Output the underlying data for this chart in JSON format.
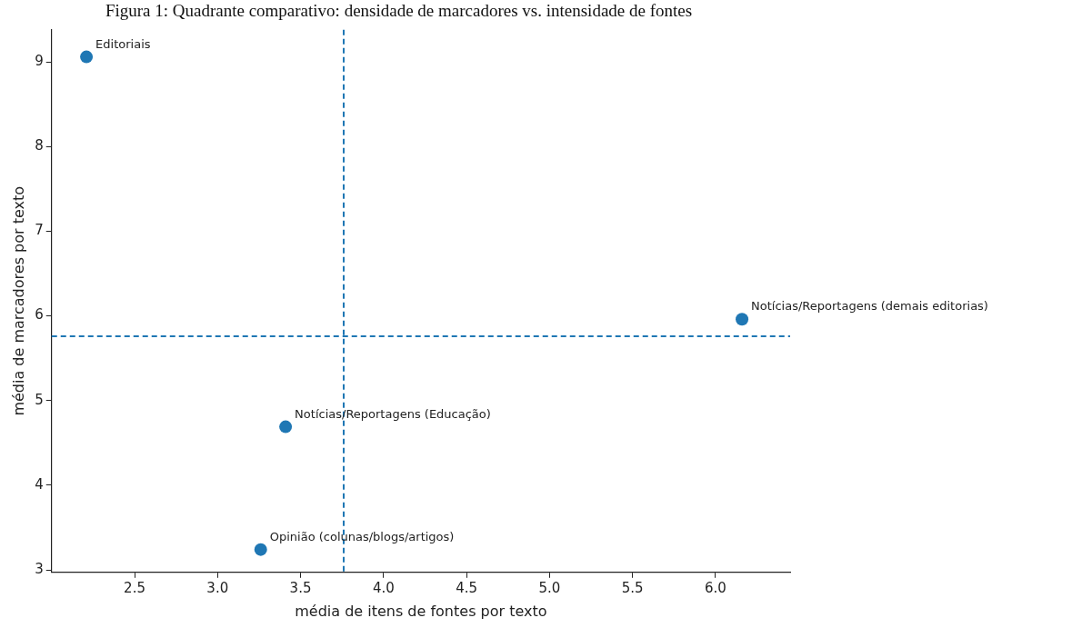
{
  "chart_data": {
    "type": "scatter",
    "title": "Figura 1: Quadrante comparativo: densidade de marcadores vs. intensidade de fontes",
    "xlabel": "média de itens de fontes por texto",
    "ylabel": "média de marcadores por texto",
    "series": [
      {
        "color": "#1f77b4",
        "x": [
          2.21,
          6.16,
          3.41,
          3.26
        ],
        "values": [
          9.06,
          5.96,
          4.69,
          3.24
        ]
      }
    ],
    "marker": "circle",
    "grid": false,
    "legend": false,
    "xlim": [
      2.0,
      6.45
    ],
    "xticks": [
      2.5,
      {
        "value": 3,
        "label": "3.0"
      },
      3.5,
      {
        "value": 4,
        "label": "4.0"
      },
      4.5,
      {
        "value": 5,
        "label": "5.0"
      },
      5.5,
      {
        "value": 6,
        "label": "6.0"
      }
    ],
    "ylim": [
      2.97,
      9.38
    ],
    "yticks": [
      3,
      4,
      5,
      6,
      7,
      8,
      9
    ],
    "ref_lines": [
      {
        "axis": "x",
        "value": 3.76,
        "color": "#1f77b4",
        "line_style": "dashed"
      },
      {
        "axis": "y",
        "value": 5.76,
        "color": "#1f77b4",
        "line_style": "dashed"
      }
    ],
    "annotations": [
      {
        "text": "Editoriais",
        "x": 2.21,
        "y": 9.06
      },
      {
        "text": "Notícias/Reportagens (demais editorias)",
        "x": 6.16,
        "y": 5.96
      },
      {
        "text": "Notícias/Reportagens (Educação)",
        "x": 3.41,
        "y": 4.69
      },
      {
        "text": "Opinião (colunas/blogs/artigos)",
        "x": 3.26,
        "y": 3.24
      }
    ]
  }
}
